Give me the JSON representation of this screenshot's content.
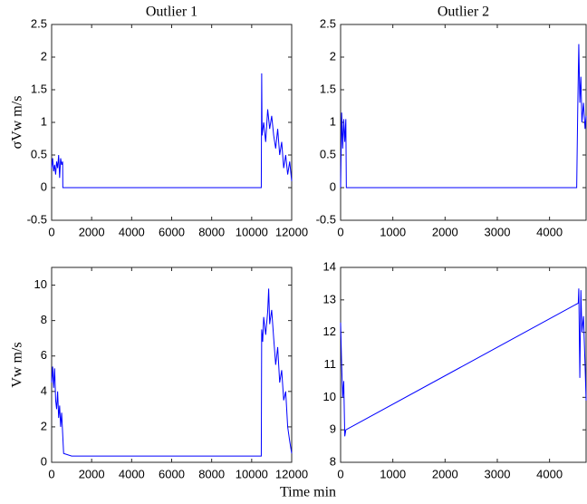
{
  "chart_data": [
    {
      "type": "line",
      "title": "Outlier 1",
      "ylabel": "σVw m/s",
      "color": "#0000ff",
      "x": [
        0,
        50,
        100,
        150,
        200,
        250,
        300,
        350,
        400,
        450,
        500,
        550,
        560,
        10480,
        10500,
        10520,
        10600,
        10700,
        10800,
        10900,
        11000,
        11100,
        11200,
        11300,
        11400,
        11500,
        11600,
        11700,
        11800,
        11900,
        12000
      ],
      "values": [
        0.3,
        0.45,
        0.25,
        0.35,
        0.2,
        0.4,
        0.3,
        0.5,
        0.15,
        0.45,
        0.35,
        0.4,
        0,
        0,
        1.75,
        0.8,
        1.0,
        0.7,
        1.2,
        0.9,
        1.1,
        0.8,
        0.6,
        0.9,
        0.5,
        0.7,
        0.3,
        0.5,
        0.2,
        0.4,
        0.1
      ],
      "xlim": [
        0,
        12000
      ],
      "xticks": [
        0,
        2000,
        4000,
        6000,
        8000,
        10000,
        12000
      ],
      "ylim": [
        -0.5,
        2.5
      ],
      "yticks": [
        -0.5,
        0,
        0.5,
        1,
        1.5,
        2,
        2.5
      ]
    },
    {
      "type": "line",
      "title": "Outlier 2",
      "color": "#0000ff",
      "x": [
        0,
        20,
        40,
        60,
        80,
        100,
        110,
        4520,
        4540,
        4560,
        4580,
        4600,
        4620,
        4650,
        4680,
        4700
      ],
      "values": [
        0,
        1.15,
        0.6,
        1.05,
        0.7,
        1.05,
        0,
        0,
        1.2,
        2.2,
        1.3,
        1.7,
        1.0,
        1.3,
        0.9,
        1.1
      ],
      "xlim": [
        0,
        4700
      ],
      "xticks": [
        0,
        1000,
        2000,
        3000,
        4000
      ],
      "ylim": [
        -0.5,
        2.5
      ],
      "yticks": [
        -0.5,
        0,
        0.5,
        1,
        1.5,
        2,
        2.5
      ]
    },
    {
      "type": "line",
      "ylabel": "Vw m/s",
      "xlabel": "Time min",
      "color": "#0000ff",
      "x": [
        0,
        50,
        100,
        150,
        200,
        250,
        300,
        350,
        400,
        450,
        500,
        600,
        1000,
        10480,
        10500,
        10550,
        10600,
        10700,
        10800,
        10850,
        10900,
        11000,
        11100,
        11200,
        11300,
        11400,
        11500,
        11600,
        11700,
        11800,
        11900,
        12000
      ],
      "values": [
        4.5,
        5.4,
        4.2,
        5.3,
        3.5,
        3.0,
        4.0,
        2.5,
        3.2,
        2.0,
        2.8,
        0.5,
        0.35,
        0.35,
        7.5,
        6.8,
        8.2,
        7.2,
        8.5,
        9.8,
        7.8,
        8.6,
        7.0,
        5.5,
        6.5,
        4.5,
        5.2,
        3.5,
        4.0,
        2.0,
        1.2,
        0.5
      ],
      "xlim": [
        0,
        12000
      ],
      "xticks": [
        0,
        2000,
        4000,
        6000,
        8000,
        10000,
        12000
      ],
      "ylim": [
        0,
        11
      ],
      "yticks": [
        0,
        2,
        4,
        6,
        8,
        10
      ]
    },
    {
      "type": "line",
      "color": "#0000ff",
      "x": [
        0,
        20,
        40,
        60,
        80,
        100,
        4550,
        4560,
        4580,
        4600,
        4620,
        4650,
        4680,
        4700
      ],
      "values": [
        12.3,
        11.0,
        10.0,
        10.5,
        8.8,
        9.0,
        12.9,
        13.35,
        10.6,
        13.3,
        12.0,
        12.5,
        11.0,
        9.9
      ],
      "xlim": [
        0,
        4700
      ],
      "xticks": [
        0,
        1000,
        2000,
        3000,
        4000
      ],
      "ylim": [
        8,
        14
      ],
      "yticks": [
        8,
        9,
        10,
        11,
        12,
        13,
        14
      ]
    }
  ]
}
